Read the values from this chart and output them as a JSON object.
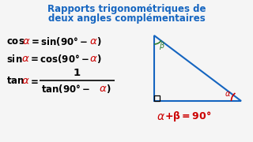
{
  "title_line1": "Rapports trigonométriques de",
  "title_line2": "deux angles complémentaires",
  "title_color": "#1565C0",
  "bg_color": "#f5f5f5",
  "formula_color": "#000000",
  "alpha_color": "#cc0000",
  "triangle_color": "#1565C0",
  "beta_color": "#2e7d32",
  "bottom_eq_color": "#cc0000"
}
